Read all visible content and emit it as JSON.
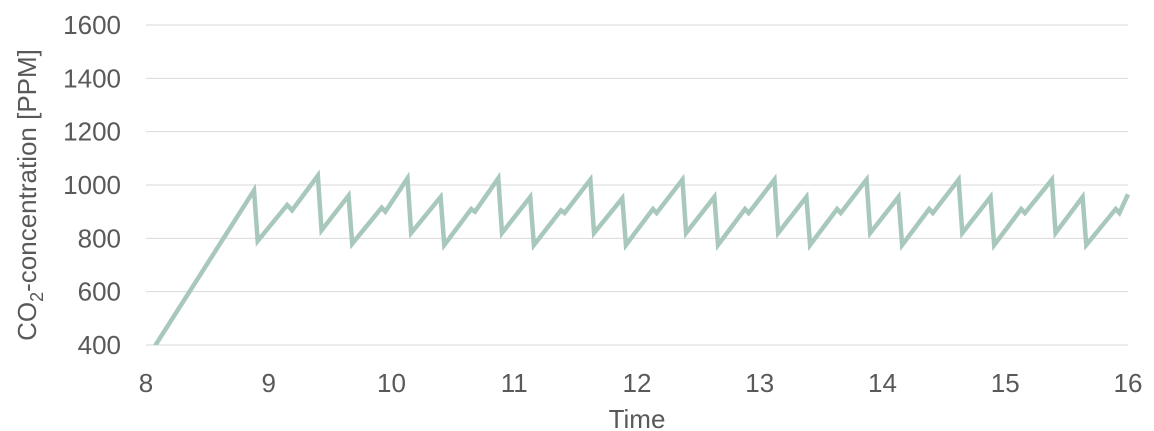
{
  "chart_data": {
    "type": "line",
    "title": "",
    "xlabel": "Time",
    "ylabel_parts": [
      "CO",
      "2",
      "-concentration [PPM]"
    ],
    "xlim": [
      8,
      16
    ],
    "ylim": [
      400,
      1600
    ],
    "xticks": [
      8,
      9,
      10,
      11,
      12,
      13,
      14,
      15,
      16
    ],
    "yticks": [
      400,
      600,
      800,
      1000,
      1200,
      1400,
      1600
    ],
    "grid": true,
    "legend": "none",
    "series": [
      {
        "color": "#a9c8bc",
        "x": [
          8.05,
          8.88,
          8.91,
          9.15,
          9.19,
          9.4,
          9.43,
          9.65,
          9.68,
          9.92,
          9.95,
          10.13,
          10.16,
          10.4,
          10.43,
          10.65,
          10.68,
          10.87,
          10.9,
          11.13,
          11.16,
          11.38,
          11.41,
          11.62,
          11.65,
          11.88,
          11.91,
          12.13,
          12.16,
          12.37,
          12.4,
          12.63,
          12.66,
          12.88,
          12.91,
          13.12,
          13.15,
          13.38,
          13.41,
          13.63,
          13.66,
          13.87,
          13.9,
          14.13,
          14.16,
          14.38,
          14.41,
          14.62,
          14.65,
          14.88,
          14.91,
          15.13,
          15.16,
          15.38,
          15.41,
          15.63,
          15.66,
          15.9,
          15.93,
          16.0
        ],
        "y": [
          380,
          980,
          790,
          925,
          905,
          1035,
          830,
          960,
          780,
          915,
          900,
          1025,
          820,
          955,
          775,
          910,
          900,
          1025,
          820,
          955,
          775,
          905,
          895,
          1020,
          820,
          950,
          775,
          910,
          895,
          1020,
          820,
          955,
          775,
          910,
          895,
          1020,
          820,
          955,
          775,
          910,
          895,
          1020,
          820,
          955,
          775,
          910,
          895,
          1020,
          820,
          955,
          775,
          910,
          895,
          1020,
          820,
          955,
          775,
          910,
          895,
          965
        ]
      }
    ]
  }
}
